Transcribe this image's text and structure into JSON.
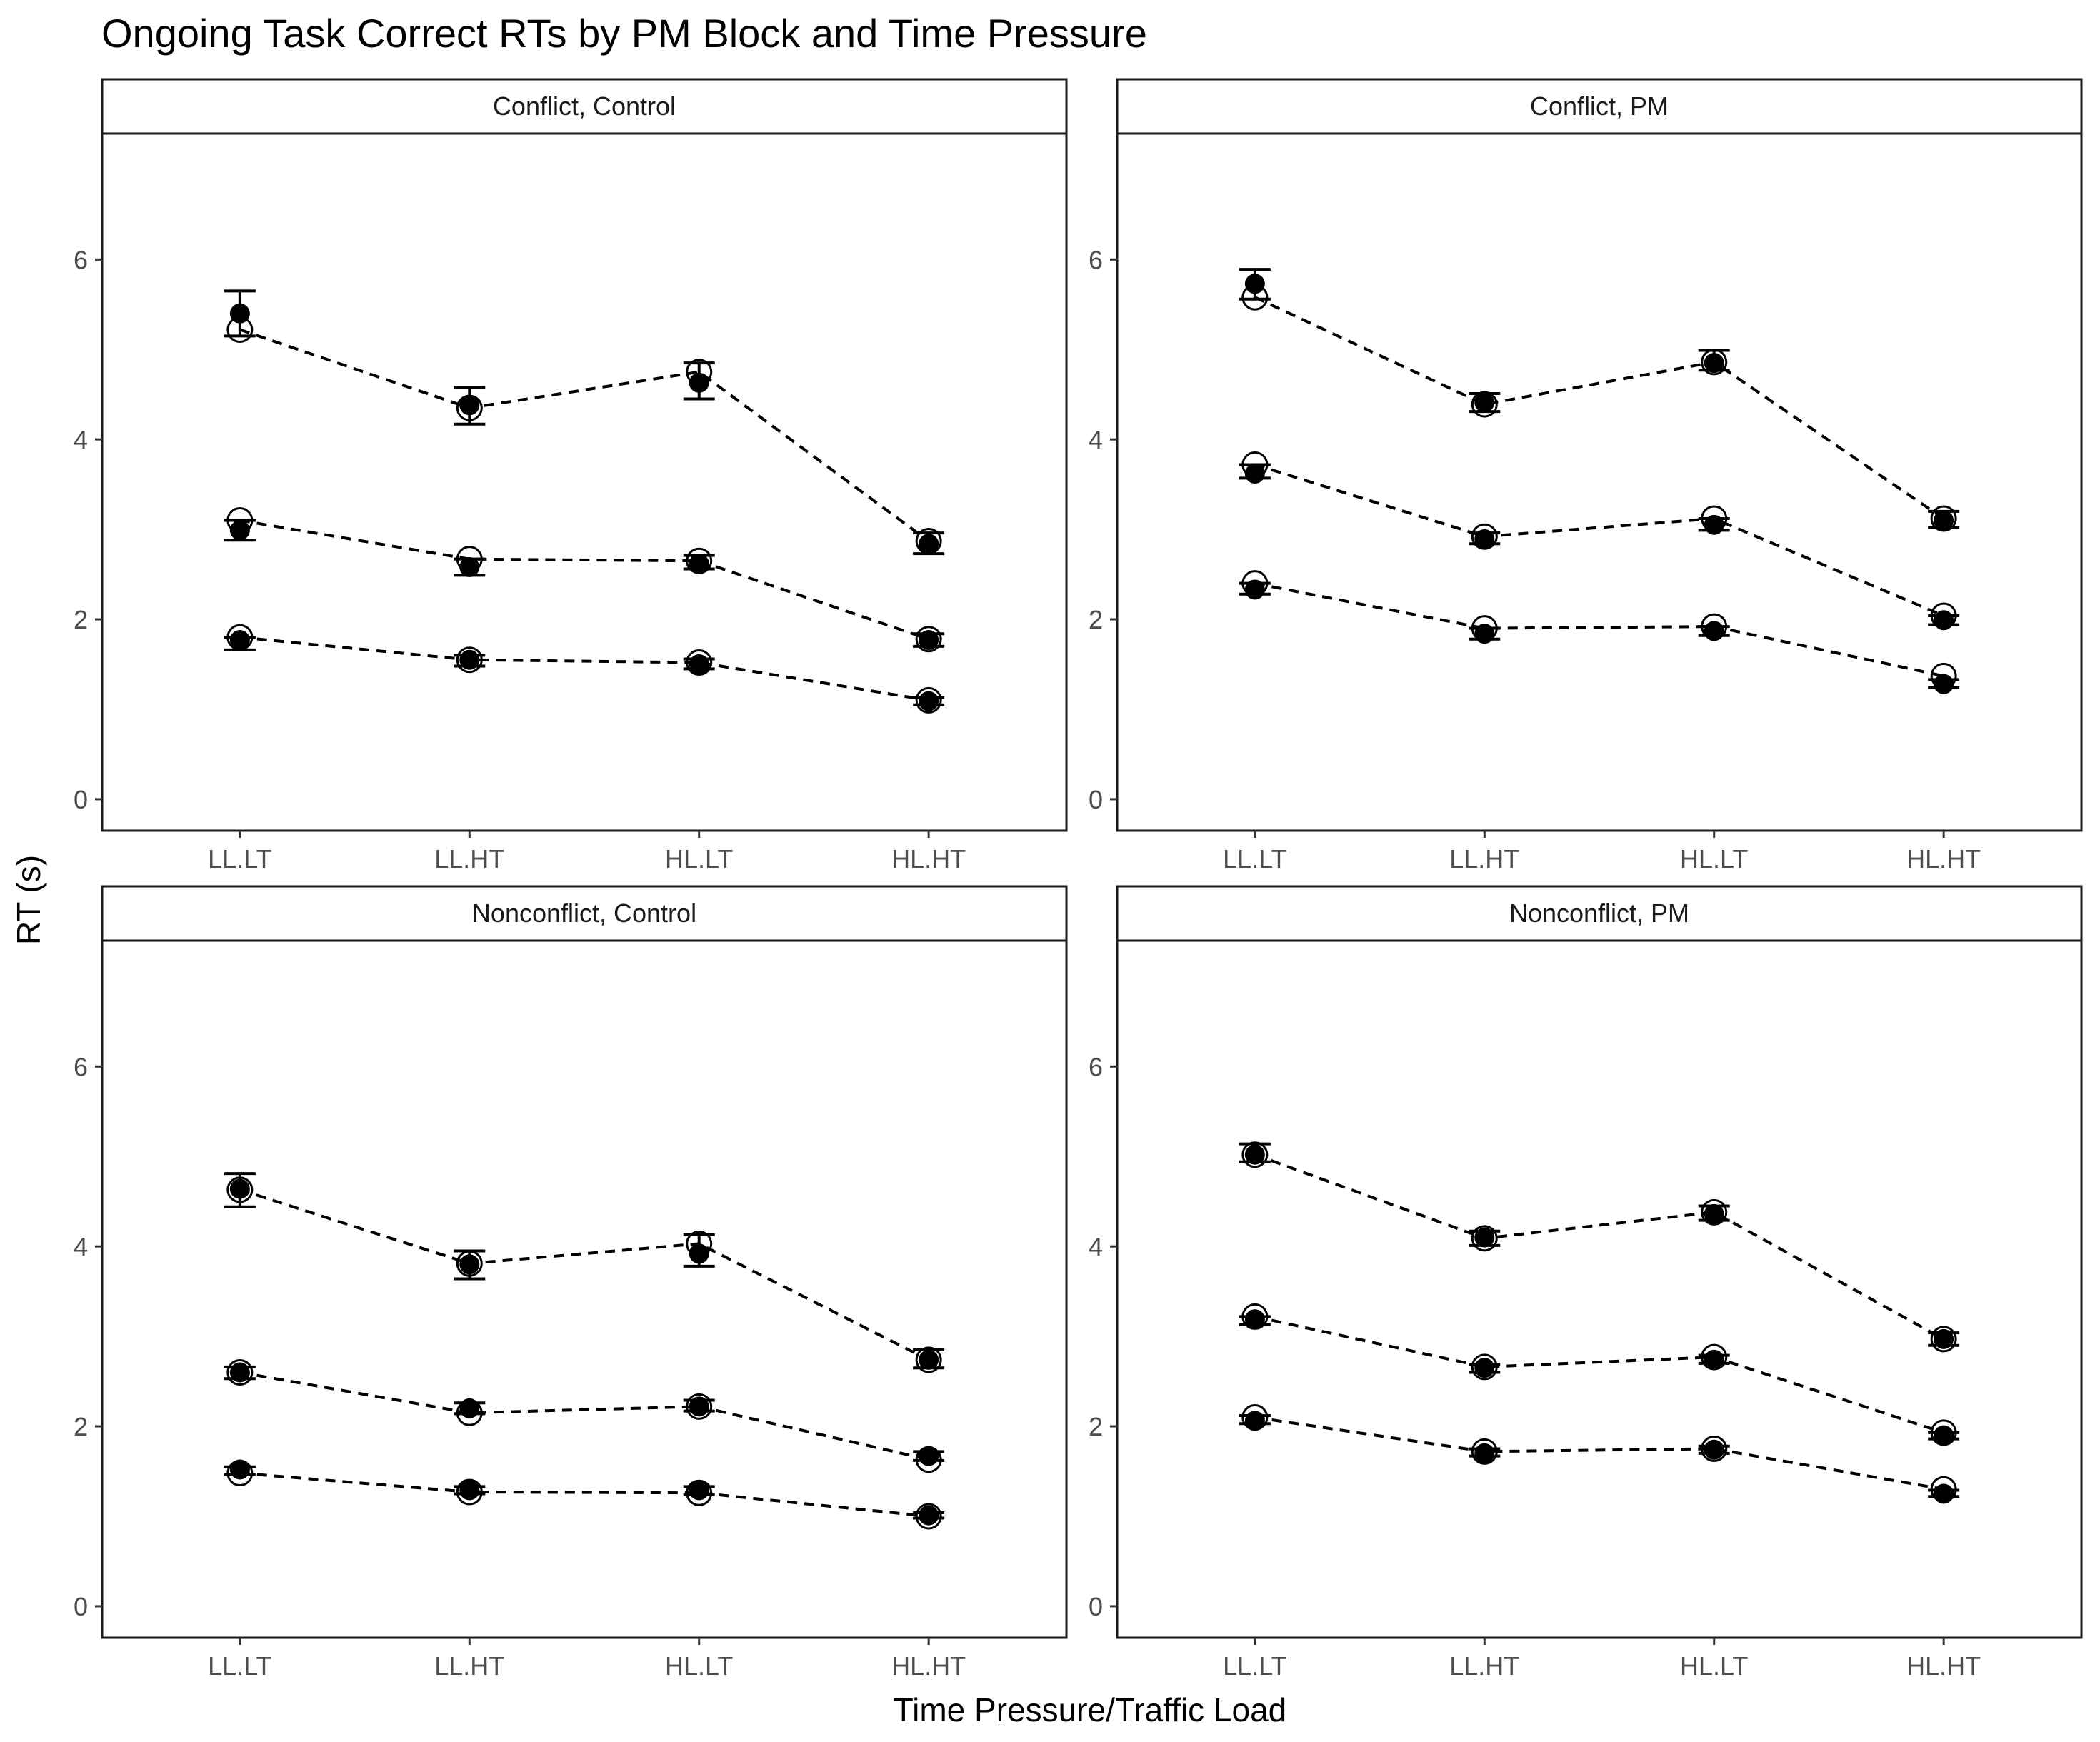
{
  "chart_data": {
    "type": "line",
    "title": "Ongoing Task Correct RTs by PM Block and Time Pressure",
    "xlabel": "Time Pressure/Traffic Load",
    "ylabel": "RT (s)",
    "categories": [
      "LL.LT",
      "LL.HT",
      "HL.LT",
      "HL.HT"
    ],
    "ylim": [
      -0.35,
      7.4
    ],
    "yticks": [
      0,
      2,
      4,
      6
    ],
    "grid": false,
    "legend": "none",
    "panels": [
      {
        "label": "Conflict, Control",
        "series": [
          {
            "line": [
              5.22,
              4.35,
              4.75,
              2.87
            ],
            "observed": [
              5.4,
              4.38,
              4.63,
              2.84
            ],
            "err": [
              [
                5.15,
                5.65
              ],
              [
                4.17,
                4.58
              ],
              [
                4.45,
                4.85
              ],
              [
                2.73,
                2.96
              ]
            ]
          },
          {
            "line": [
              3.1,
              2.67,
              2.65,
              1.78
            ],
            "observed": [
              2.99,
              2.58,
              2.62,
              1.77
            ],
            "err": [
              [
                2.88,
                3.1
              ],
              [
                2.49,
                2.67
              ],
              [
                2.56,
                2.71
              ],
              [
                1.7,
                1.84
              ]
            ]
          },
          {
            "line": [
              1.8,
              1.55,
              1.52,
              1.1
            ],
            "observed": [
              1.77,
              1.55,
              1.5,
              1.09
            ],
            "err": [
              [
                1.66,
                1.8
              ],
              [
                1.48,
                1.6
              ],
              [
                1.45,
                1.56
              ],
              [
                1.05,
                1.13
              ]
            ]
          }
        ]
      },
      {
        "label": "Conflict, PM",
        "series": [
          {
            "line": [
              5.58,
              4.39,
              4.86,
              3.12
            ],
            "observed": [
              5.73,
              4.41,
              4.85,
              3.1
            ],
            "err": [
              [
                5.56,
                5.89
              ],
              [
                4.31,
                4.51
              ],
              [
                4.77,
                4.99
              ],
              [
                3.02,
                3.2
              ]
            ]
          },
          {
            "line": [
              3.72,
              2.92,
              3.12,
              2.04
            ],
            "observed": [
              3.62,
              2.89,
              3.05,
              1.99
            ],
            "err": [
              [
                3.57,
                3.72
              ],
              [
                2.84,
                2.96
              ],
              [
                2.99,
                3.12
              ],
              [
                1.94,
                2.04
              ]
            ]
          },
          {
            "line": [
              2.4,
              1.9,
              1.92,
              1.37
            ],
            "observed": [
              2.33,
              1.84,
              1.87,
              1.28
            ],
            "err": [
              [
                2.28,
                2.4
              ],
              [
                1.78,
                1.9
              ],
              [
                1.82,
                1.92
              ],
              [
                1.24,
                1.33
              ]
            ]
          }
        ]
      },
      {
        "label": "Nonconflict, Control",
        "series": [
          {
            "line": [
              4.63,
              3.81,
              4.03,
              2.74
            ],
            "observed": [
              4.64,
              3.8,
              3.92,
              2.74
            ],
            "err": [
              [
                4.44,
                4.81
              ],
              [
                3.64,
                3.95
              ],
              [
                3.78,
                4.13
              ],
              [
                2.65,
                2.85
              ]
            ]
          },
          {
            "line": [
              2.6,
              2.15,
              2.22,
              1.63
            ],
            "observed": [
              2.6,
              2.2,
              2.22,
              1.67
            ],
            "err": [
              [
                2.53,
                2.66
              ],
              [
                2.14,
                2.26
              ],
              [
                2.17,
                2.29
              ],
              [
                1.62,
                1.72
              ]
            ]
          },
          {
            "line": [
              1.48,
              1.27,
              1.26,
              1.0
            ],
            "observed": [
              1.52,
              1.29,
              1.29,
              1.01
            ],
            "err": [
              [
                1.46,
                1.55
              ],
              [
                1.25,
                1.33
              ],
              [
                1.24,
                1.33
              ],
              [
                0.98,
                1.04
              ]
            ]
          }
        ]
      },
      {
        "label": "Nonconflict, PM",
        "series": [
          {
            "line": [
              5.02,
              4.09,
              4.38,
              2.97
            ],
            "observed": [
              5.02,
              4.1,
              4.36,
              2.97
            ],
            "err": [
              [
                4.94,
                5.14
              ],
              [
                4.01,
                4.17
              ],
              [
                4.29,
                4.45
              ],
              [
                2.9,
                3.04
              ]
            ]
          },
          {
            "line": [
              3.22,
              2.66,
              2.77,
              1.93
            ],
            "observed": [
              3.19,
              2.65,
              2.74,
              1.9
            ],
            "err": [
              [
                3.13,
                3.22
              ],
              [
                2.6,
                2.69
              ],
              [
                2.7,
                2.79
              ],
              [
                1.86,
                1.93
              ]
            ]
          },
          {
            "line": [
              2.1,
              1.72,
              1.75,
              1.3
            ],
            "observed": [
              2.06,
              1.7,
              1.74,
              1.25
            ],
            "err": [
              [
                2.03,
                2.12
              ],
              [
                1.67,
                1.75
              ],
              [
                1.7,
                1.78
              ],
              [
                1.22,
                1.29
              ]
            ]
          }
        ]
      }
    ]
  }
}
